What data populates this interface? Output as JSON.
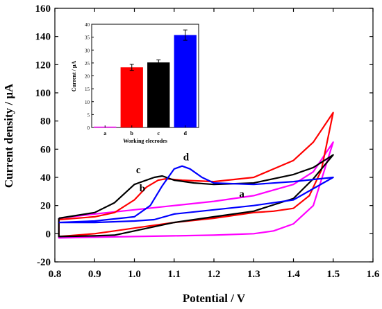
{
  "chart_data": [
    {
      "type": "line",
      "xlabel": "Potential / V",
      "ylabel": "Current density / μA",
      "xlim": [
        0.8,
        1.6
      ],
      "ylim": [
        -20,
        160
      ],
      "x_ticks": [
        "0.8",
        "0.9",
        "1.0",
        "1.1",
        "1.2",
        "1.3",
        "1.4",
        "1.5",
        "1.6"
      ],
      "y_ticks": [
        "-20",
        "0",
        "20",
        "40",
        "60",
        "80",
        "100",
        "120",
        "140",
        "160"
      ],
      "grid": false,
      "series": [
        {
          "name": "a",
          "color": "#ff00ff",
          "x": [
            0.81,
            0.9,
            1.0,
            1.1,
            1.2,
            1.3,
            1.4,
            1.45,
            1.5,
            1.5,
            1.45,
            1.4,
            1.35,
            1.3,
            1.2,
            1.1,
            1.0,
            0.9,
            0.81,
            0.81
          ],
          "y": [
            11,
            14,
            17,
            20,
            23,
            27,
            35,
            44,
            65,
            65,
            20,
            7,
            2,
            0,
            -1,
            -1.5,
            -2,
            -2.5,
            -3,
            11
          ]
        },
        {
          "name": "b",
          "color": "#ff0000",
          "x": [
            0.81,
            0.9,
            0.95,
            1.0,
            1.03,
            1.06,
            1.08,
            1.12,
            1.2,
            1.3,
            1.4,
            1.45,
            1.5,
            1.5,
            1.47,
            1.44,
            1.4,
            1.35,
            1.3,
            1.2,
            1.1,
            1.0,
            0.95,
            0.9,
            0.81,
            0.81
          ],
          "y": [
            10,
            12,
            15,
            24,
            33,
            38,
            39,
            38,
            37,
            40,
            52,
            65,
            86,
            86,
            45,
            27,
            18,
            16,
            15,
            11,
            8,
            4,
            2,
            0,
            -2,
            10
          ]
        },
        {
          "name": "c",
          "color": "#000000",
          "x": [
            0.81,
            0.9,
            0.95,
            1.0,
            1.05,
            1.07,
            1.1,
            1.15,
            1.2,
            1.3,
            1.4,
            1.45,
            1.5,
            1.5,
            1.45,
            1.4,
            1.3,
            1.2,
            1.1,
            1.0,
            0.95,
            0.9,
            0.81,
            0.81
          ],
          "y": [
            11,
            15,
            22,
            35,
            40,
            41,
            38,
            36,
            35,
            36,
            42,
            47,
            56,
            56,
            39,
            25,
            16,
            12,
            8,
            2,
            -1,
            -1.5,
            -2,
            11
          ]
        },
        {
          "name": "d",
          "color": "#0000ff",
          "x": [
            0.81,
            0.9,
            1.0,
            1.04,
            1.07,
            1.1,
            1.12,
            1.14,
            1.17,
            1.2,
            1.3,
            1.4,
            1.5,
            1.5,
            1.4,
            1.3,
            1.2,
            1.1,
            1.05,
            1.0,
            0.9,
            0.81,
            0.81
          ],
          "y": [
            8,
            9,
            12,
            20,
            34,
            46,
            48,
            46,
            40,
            36,
            35,
            37,
            40,
            40,
            24,
            20,
            17,
            14,
            10,
            9,
            8,
            8,
            8
          ]
        }
      ],
      "annotations": [
        {
          "text": "a",
          "x": 1.27,
          "y": 26
        },
        {
          "text": "b",
          "x": 1.02,
          "y": 30
        },
        {
          "text": "c",
          "x": 1.01,
          "y": 43
        },
        {
          "text": "d",
          "x": 1.13,
          "y": 52
        }
      ]
    },
    {
      "type": "bar",
      "xlabel": "Working elecrodes",
      "ylabel": "Current / μA",
      "categories": [
        "a",
        "b",
        "c",
        "d"
      ],
      "values": [
        0,
        23.3,
        25.2,
        35.8
      ],
      "errors": [
        0,
        1.2,
        1.0,
        2.0
      ],
      "colors": [
        "#ff00ff",
        "#ff0000",
        "#000000",
        "#0000ff"
      ],
      "ylim": [
        0,
        40
      ],
      "y_ticks": [
        "0",
        "5",
        "10",
        "15",
        "20",
        "25",
        "30",
        "35",
        "40"
      ]
    }
  ]
}
